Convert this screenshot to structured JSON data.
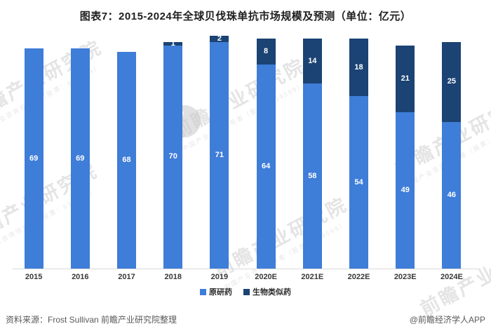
{
  "title": "图表7：2015-2024年全球贝伐珠单抗市场规模及预测（单位：亿元）",
  "chart_data": {
    "type": "bar",
    "stacked": true,
    "title": "图表7：2015-2024年全球贝伐珠单抗市场规模及预测（单位：亿元）",
    "unit": "亿元",
    "categories": [
      "2015",
      "2016",
      "2017",
      "2018",
      "2019",
      "2020E",
      "2021E",
      "2022E",
      "2023E",
      "2024E"
    ],
    "series": [
      {
        "name": "原研药",
        "color": "#3e7dd8",
        "values": [
          69,
          69,
          68,
          70,
          71,
          64,
          58,
          54,
          49,
          46
        ]
      },
      {
        "name": "生物类似药",
        "color": "#1b4373",
        "values": [
          0,
          0,
          0,
          1,
          2,
          8,
          14,
          18,
          21,
          25
        ]
      }
    ],
    "totals": [
      69,
      69,
      68,
      71,
      73,
      72,
      72,
      72,
      70,
      71
    ],
    "ylim": [
      0,
      74
    ],
    "grid": false,
    "legend_position": "bottom",
    "value_labels": "white, centered in each segment"
  },
  "colors": {
    "original_drug": "#3e7dd8",
    "biosimilar": "#1b4373",
    "axis_line": "#d9d9d9",
    "title_text": "#1f1f1f",
    "footer_text": "#595959"
  },
  "footer": {
    "source": "资料来源：Frost Sullivan 前瞻产业研究院整理",
    "credit": "@前瞻经济学人APP"
  },
  "watermark": {
    "text_large": "前瞻产业研究院",
    "text_small": "中国产业咨询领导者（股票：839599）"
  }
}
